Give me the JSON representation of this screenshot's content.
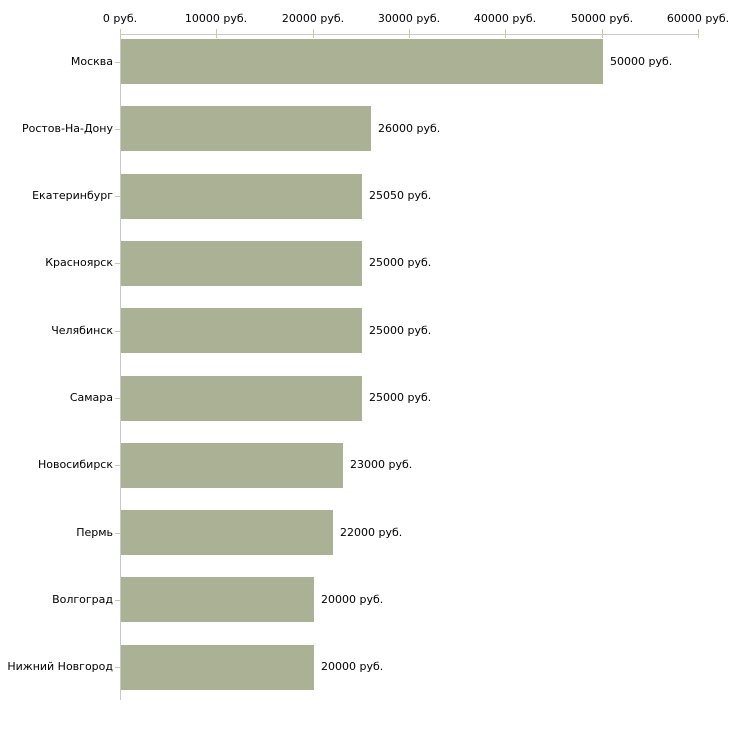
{
  "chart_data": {
    "type": "bar",
    "orientation": "horizontal",
    "title": "",
    "xlabel": "",
    "ylabel": "",
    "unit": "руб.",
    "categories": [
      "Москва",
      "Ростов-На-Дону",
      "Екатеринбург",
      "Красноярск",
      "Челябинск",
      "Самара",
      "Новосибирск",
      "Пермь",
      "Волгоград",
      "Нижний Новгород"
    ],
    "values": [
      50000,
      26000,
      25050,
      25000,
      25000,
      25000,
      23000,
      22000,
      20000,
      20000
    ],
    "value_labels": [
      "50000 руб.",
      "26000 руб.",
      "25050 руб.",
      "25000 руб.",
      "25000 руб.",
      "25000 руб.",
      "23000 руб.",
      "22000 руб.",
      "20000 руб.",
      "20000 руб."
    ],
    "x_ticks": [
      0,
      10000,
      20000,
      30000,
      40000,
      50000,
      60000
    ],
    "x_tick_labels": [
      "0 руб.",
      "10000 руб.",
      "20000 руб.",
      "30000 руб.",
      "40000 руб.",
      "50000 руб.",
      "60000 руб."
    ],
    "xlim": [
      0,
      60000
    ],
    "x_axis_position": "top",
    "grid": false,
    "legend": false,
    "colors": {
      "bar": "#abb194",
      "axis": "#c8c8c8",
      "tick": "#cbcb9e",
      "text": "#000000",
      "background": "#ffffff"
    }
  }
}
